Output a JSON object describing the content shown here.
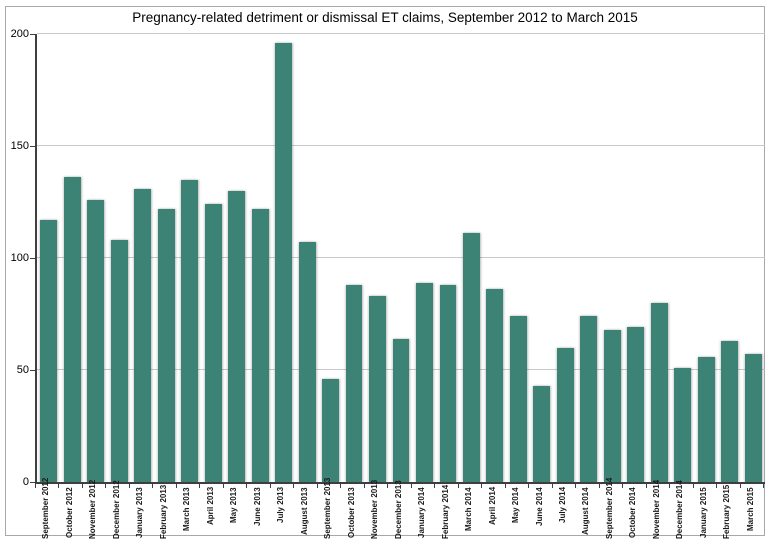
{
  "title": "Pregnancy-related detriment or dismissal ET claims, September 2012 to March 2015",
  "colors": {
    "bar": "#3c8376",
    "gridline": "#c9c9c9",
    "axis": "#3f3f3f",
    "frame_border": "#a8a8a8",
    "background": "#ffffff"
  },
  "chart_data": {
    "type": "bar",
    "title": "Pregnancy-related detriment or dismissal ET claims, September 2012 to March 2015",
    "xlabel": "",
    "ylabel": "",
    "ylim": [
      0,
      200
    ],
    "yticks": [
      0,
      50,
      100,
      150,
      200
    ],
    "grid": true,
    "legend": false,
    "categories": [
      "September 2012",
      "October 2012",
      "November 2012",
      "December 2012",
      "January 2013",
      "February 2013",
      "March 2013",
      "April 2013",
      "May 2013",
      "June 2013",
      "July 2013",
      "August 2013",
      "September 2013",
      "October 2013",
      "November 2013",
      "December 2013",
      "January 2014",
      "February 2014",
      "March 2014",
      "April 2014",
      "May 2014",
      "June 2014",
      "July 2014",
      "August 2014",
      "September 2014",
      "October 2014",
      "November 2014",
      "December 2014",
      "January 2015",
      "February 2015",
      "March 2015"
    ],
    "values": [
      117,
      136,
      126,
      108,
      131,
      122,
      135,
      124,
      130,
      122,
      196,
      107,
      46,
      88,
      83,
      64,
      89,
      88,
      111,
      86,
      74,
      43,
      60,
      74,
      68,
      69,
      80,
      51,
      56,
      63,
      57
    ]
  }
}
